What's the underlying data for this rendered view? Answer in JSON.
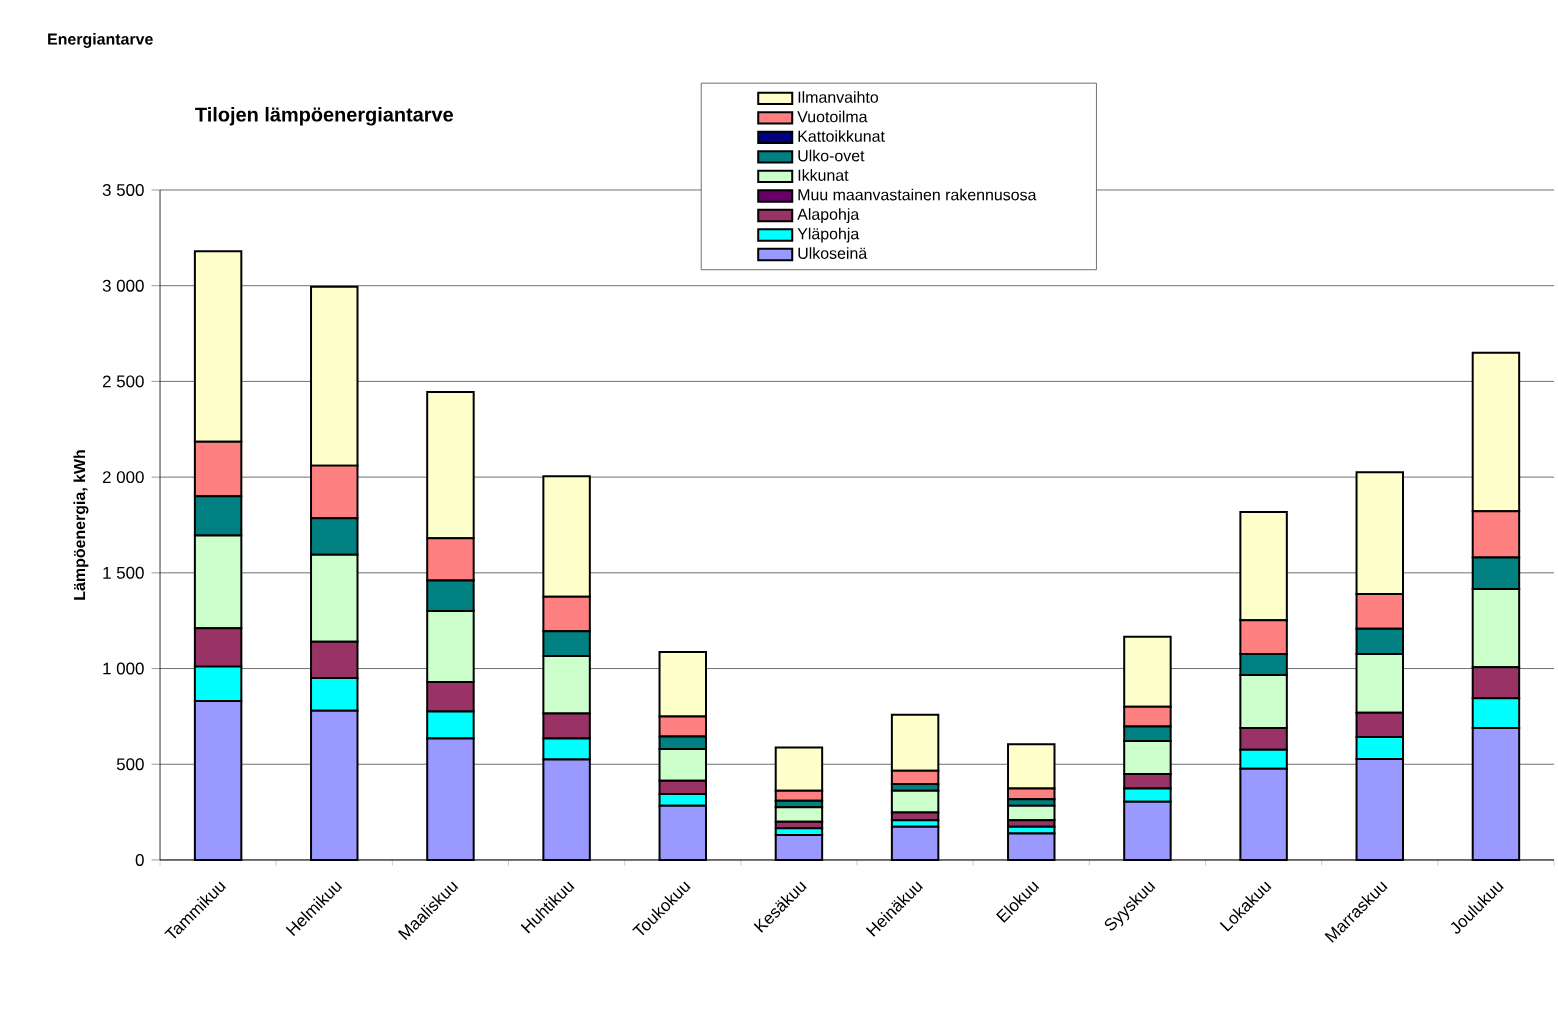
{
  "chart_data": {
    "type": "bar",
    "stacked": true,
    "title": "Tilojen lämpöenergiantarve",
    "ylabel": "Lämpöenergia, kWh",
    "annotations": [
      "Energiantarve"
    ],
    "categories": [
      "Tammikuu",
      "Helmikuu",
      "Maaliskuu",
      "Huhtikuu",
      "Toukokuu",
      "Kesäkuu",
      "Heinäkuu",
      "Elokuu",
      "Syyskuu",
      "Lokakuu",
      "Marraskuu",
      "Joulukuu"
    ],
    "series": [
      {
        "name": "Ulkoseinä",
        "color": "#9999ff",
        "values": [
          830,
          780,
          635,
          525,
          283,
          131,
          173,
          138,
          304,
          476,
          528,
          690
        ]
      },
      {
        "name": "Yläpohja",
        "color": "#00ffff",
        "values": [
          180,
          170,
          140,
          110,
          62,
          35,
          34,
          35,
          69,
          100,
          114,
          155
        ]
      },
      {
        "name": "Alapohja",
        "color": "#993366",
        "values": [
          200,
          190,
          155,
          130,
          69,
          34,
          41,
          34,
          76,
          114,
          127,
          162
        ]
      },
      {
        "name": "Muu maanvastainen rakennusosa",
        "color": "#660066",
        "values": [
          0,
          0,
          0,
          0,
          0,
          0,
          0,
          0,
          0,
          0,
          0,
          0
        ]
      },
      {
        "name": "Ikkunat",
        "color": "#ccffcc",
        "values": [
          485,
          455,
          370,
          300,
          166,
          76,
          114,
          76,
          172,
          276,
          307,
          408
        ]
      },
      {
        "name": "Ulko-ovet",
        "color": "#008080",
        "values": [
          205,
          190,
          160,
          130,
          65,
          34,
          35,
          34,
          76,
          110,
          132,
          165
        ]
      },
      {
        "name": "Kattoikkunat",
        "color": "#000080",
        "values": [
          0,
          0,
          0,
          0,
          0,
          0,
          0,
          0,
          0,
          0,
          0,
          0
        ]
      },
      {
        "name": "Vuotoilma",
        "color": "#ff8080",
        "values": [
          285,
          275,
          220,
          180,
          104,
          52,
          69,
          56,
          103,
          176,
          182,
          242
        ]
      },
      {
        "name": "Ilmanvaihto",
        "color": "#ffffcc",
        "values": [
          995,
          935,
          765,
          630,
          338,
          225,
          293,
          231,
          366,
          566,
          635,
          828
        ]
      }
    ],
    "ylim": [
      0,
      3500
    ],
    "yticks": [
      0,
      500,
      {
        "value": 1000,
        "label": "1 000"
      },
      {
        "value": 1500,
        "label": "1 500"
      },
      {
        "value": 2000,
        "label": "2 000"
      },
      {
        "value": 2500,
        "label": "2 500"
      },
      {
        "value": 3000,
        "label": "3 000"
      },
      {
        "value": 3500,
        "label": "3 500"
      }
    ],
    "grid": "y",
    "legend": "top"
  }
}
